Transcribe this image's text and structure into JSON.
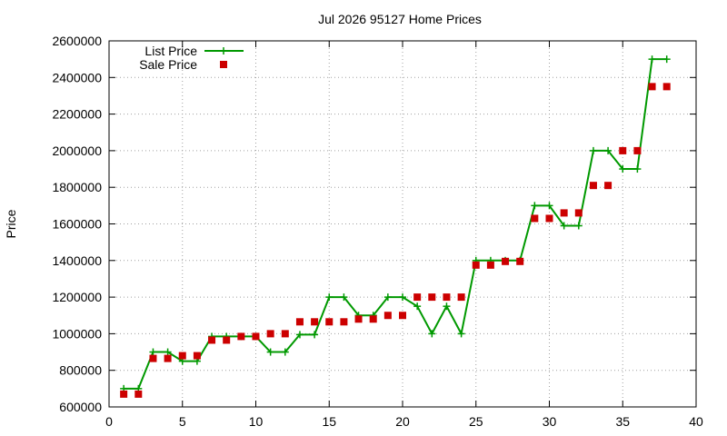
{
  "chart_data": {
    "type": "line",
    "title": "Jul 2026 95127 Home Prices",
    "xlabel": "",
    "ylabel": "Price",
    "xlim": [
      0,
      40
    ],
    "ylim": [
      600000,
      2600000
    ],
    "xticks": [
      0,
      5,
      10,
      15,
      20,
      25,
      30,
      35,
      40
    ],
    "yticks": [
      600000,
      800000,
      1000000,
      1200000,
      1400000,
      1600000,
      1800000,
      2000000,
      2200000,
      2400000,
      2600000
    ],
    "grid": true,
    "legend": "top-left",
    "series": [
      {
        "name": "List Price",
        "style": "linespoints",
        "color": "#009900",
        "marker": "plus",
        "x": [
          1,
          2,
          3,
          4,
          5,
          6,
          7,
          8,
          9,
          10,
          11,
          12,
          13,
          14,
          15,
          16,
          17,
          18,
          19,
          20,
          21,
          22,
          23,
          24,
          25,
          26,
          27,
          28,
          29,
          30,
          31,
          32,
          33,
          34,
          35,
          36,
          37,
          38
        ],
        "y": [
          700000,
          700000,
          900000,
          900000,
          850000,
          850000,
          985000,
          985000,
          985000,
          985000,
          900000,
          900000,
          995000,
          995000,
          1200000,
          1200000,
          1100000,
          1100000,
          1200000,
          1200000,
          1150000,
          1000000,
          1150000,
          1000000,
          1400000,
          1400000,
          1400000,
          1400000,
          1700000,
          1700000,
          1590000,
          1590000,
          2000000,
          2000000,
          1900000,
          1900000,
          2500000,
          2500000
        ]
      },
      {
        "name": "Sale Price",
        "style": "points",
        "color": "#cc0000",
        "marker": "square",
        "x": [
          1,
          2,
          3,
          4,
          5,
          6,
          7,
          8,
          9,
          10,
          11,
          12,
          13,
          14,
          15,
          16,
          17,
          18,
          19,
          20,
          21,
          22,
          23,
          24,
          25,
          26,
          27,
          28,
          29,
          30,
          31,
          32,
          33,
          34,
          35,
          36,
          37,
          38
        ],
        "y": [
          670000,
          670000,
          865000,
          865000,
          880000,
          880000,
          965000,
          965000,
          985000,
          985000,
          1000000,
          1000000,
          1065000,
          1065000,
          1065000,
          1065000,
          1080000,
          1080000,
          1100000,
          1100000,
          1200000,
          1200000,
          1200000,
          1200000,
          1375000,
          1375000,
          1395000,
          1395000,
          1630000,
          1630000,
          1660000,
          1660000,
          1810000,
          1810000,
          2000000,
          2000000,
          2350000,
          2350000
        ]
      }
    ]
  }
}
